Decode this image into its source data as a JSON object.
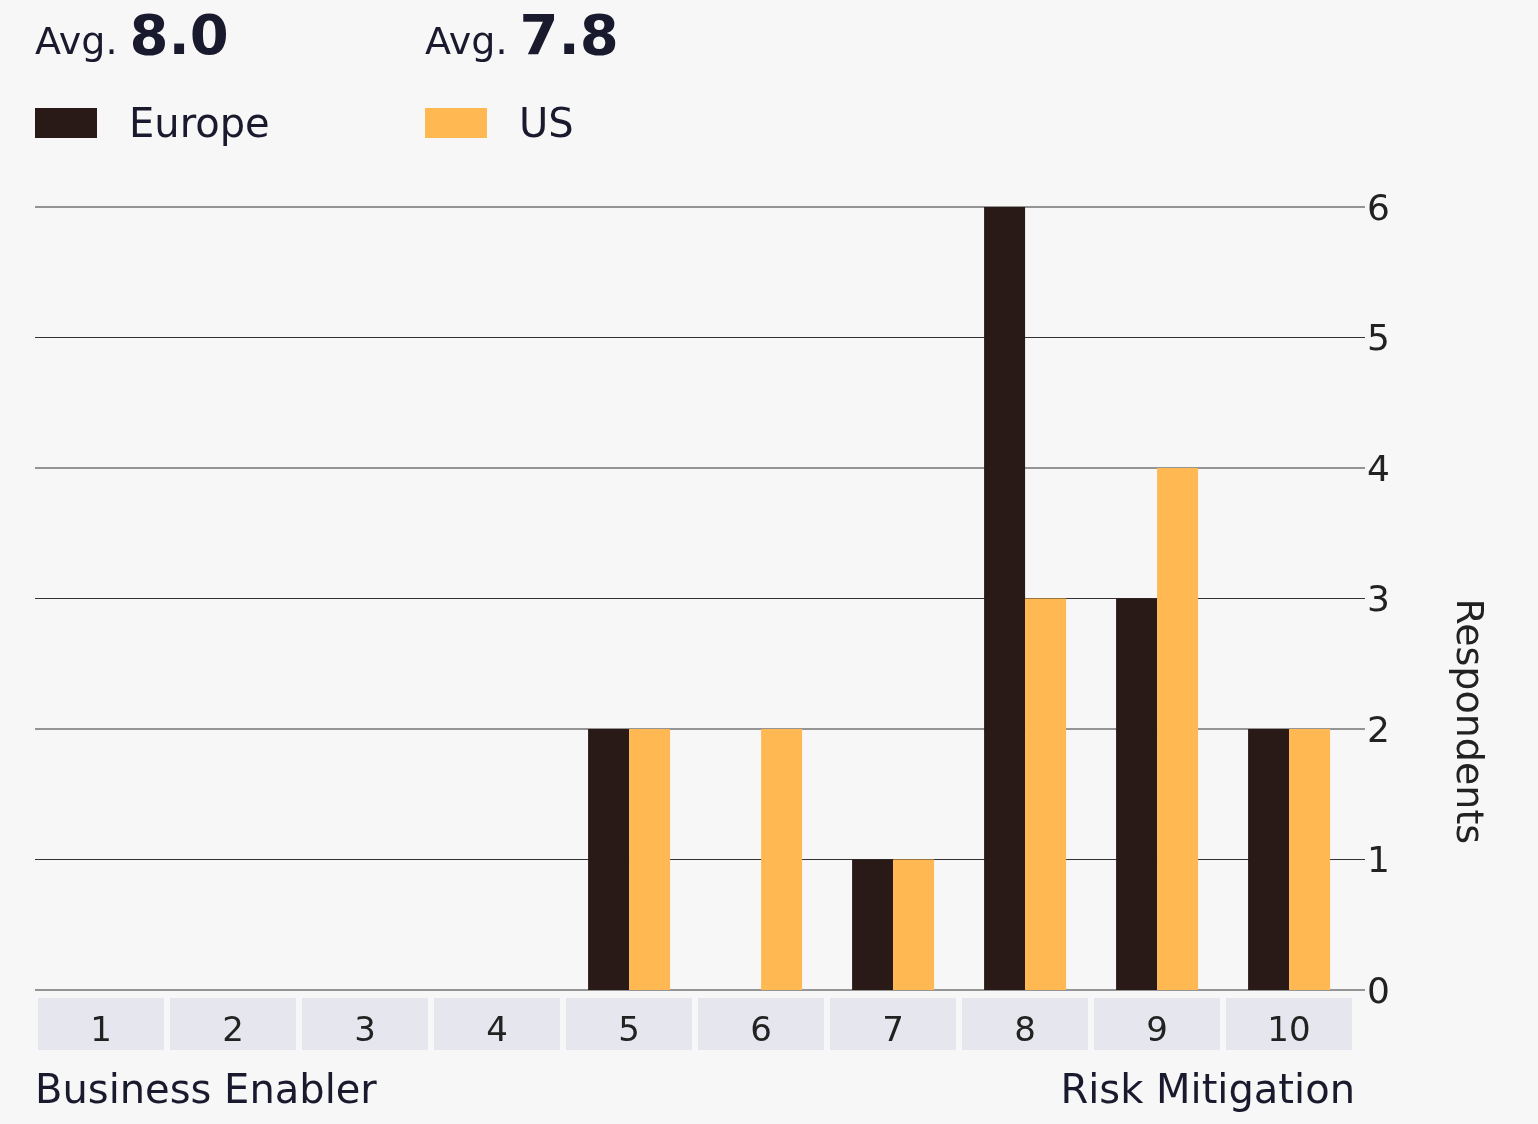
{
  "chart_data": {
    "type": "bar",
    "categories": [
      "1",
      "2",
      "3",
      "4",
      "5",
      "6",
      "7",
      "8",
      "9",
      "10"
    ],
    "series": [
      {
        "name": "Europe",
        "color": "#2a1a17",
        "values": [
          0,
          0,
          0,
          0,
          2,
          0,
          1,
          6,
          3,
          2
        ]
      },
      {
        "name": "US",
        "color": "#ffb852",
        "values": [
          0,
          0,
          0,
          0,
          2,
          2,
          1,
          3,
          4,
          2
        ]
      }
    ],
    "ylabel": "Respondents",
    "ylim": [
      0,
      6
    ],
    "yticks": [
      0,
      1,
      2,
      3,
      4,
      5,
      6
    ],
    "grid": "y",
    "legend": "top left",
    "annotations": [
      "Avg. 8.0",
      "Avg. 7.8",
      "Business Enabler",
      "Risk Mitigation"
    ]
  }
}
